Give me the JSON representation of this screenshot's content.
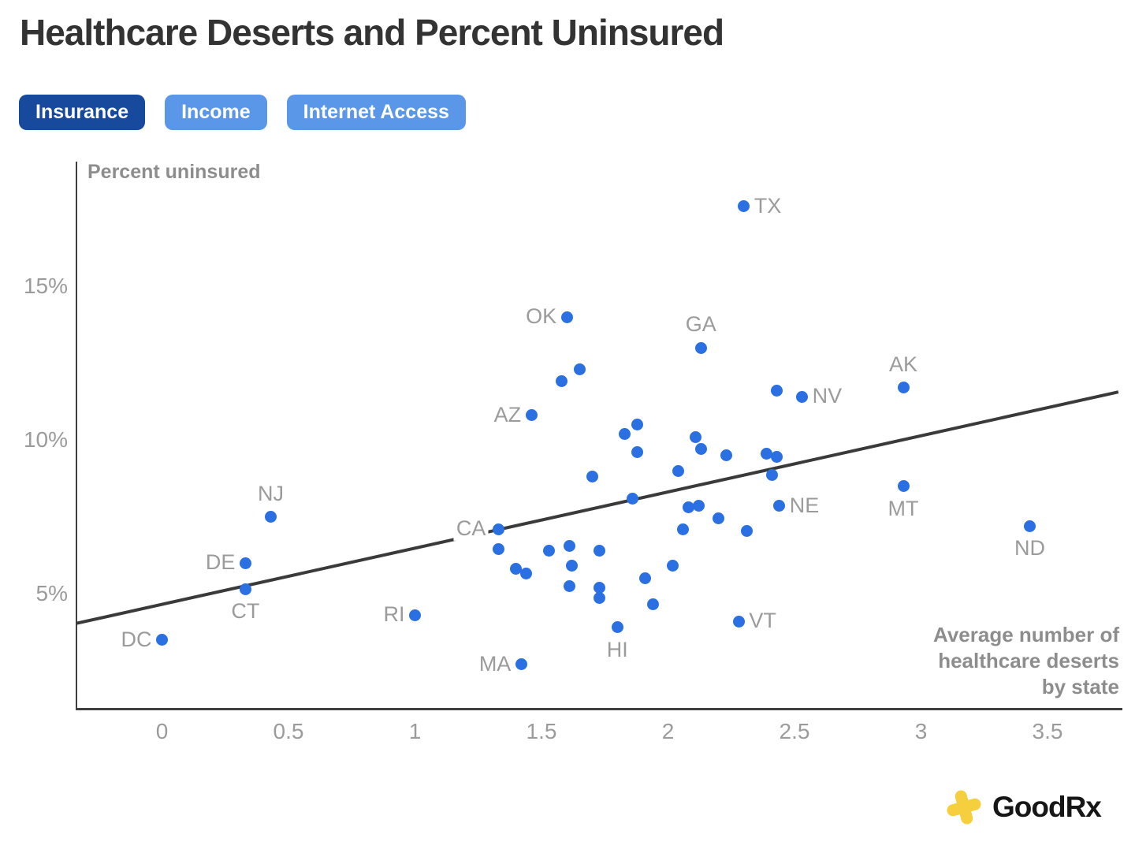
{
  "title": "Healthcare Deserts and Percent Uninsured",
  "tabs": [
    {
      "label": "Insurance",
      "active": true
    },
    {
      "label": "Income",
      "active": false
    },
    {
      "label": "Internet Access",
      "active": false
    }
  ],
  "colors": {
    "accent_blue": "#2B70E2",
    "tab_active": "#17499C",
    "tab_inactive": "#5A97E8",
    "trend_line": "#3A3A3A",
    "label_gray": "#9B9B9B",
    "brand_yellow": "#F5CF3D"
  },
  "branding": {
    "logo_text": "GoodRx",
    "logo_icon": "tilted-plus-cross"
  },
  "chart_data": {
    "type": "scatter",
    "title": "Healthcare Deserts and Percent Uninsured",
    "ylabel": "Percent uninsured",
    "xlabel_lines": [
      "Average number of",
      "healthcare deserts",
      "by state"
    ],
    "x_ticks": [
      {
        "v": 0,
        "label": "0"
      },
      {
        "v": 0.5,
        "label": "0.5"
      },
      {
        "v": 1,
        "label": "1"
      },
      {
        "v": 1.5,
        "label": "1.5"
      },
      {
        "v": 2,
        "label": "2"
      },
      {
        "v": 2.5,
        "label": "2.5"
      },
      {
        "v": 3,
        "label": "3"
      },
      {
        "v": 3.5,
        "label": "3.5"
      }
    ],
    "y_ticks": [
      {
        "v": 5,
        "label": "5%"
      },
      {
        "v": 10,
        "label": "10%"
      },
      {
        "v": 15,
        "label": "15%"
      }
    ],
    "xlim": [
      -0.35,
      3.85
    ],
    "ylim": [
      1.3,
      19.1
    ],
    "grid": false,
    "legend": false,
    "trendline": {
      "x1": -0.34,
      "y1": 4.03,
      "x2": 3.78,
      "y2": 11.56
    },
    "points": [
      {
        "state": "DC",
        "x": 0.0,
        "y": 3.5,
        "label_pos": "left"
      },
      {
        "state": "CT",
        "x": 0.33,
        "y": 5.15,
        "label_pos": "below"
      },
      {
        "state": "DE",
        "x": 0.33,
        "y": 6.0,
        "label_pos": "left"
      },
      {
        "state": "NJ",
        "x": 0.43,
        "y": 7.5,
        "label_pos": "above"
      },
      {
        "state": "RI",
        "x": 1.0,
        "y": 4.3,
        "label_pos": "left"
      },
      {
        "state": "CA",
        "x": 1.33,
        "y": 7.1,
        "label_pos": "left",
        "halo": true
      },
      {
        "state": "MA",
        "x": 1.42,
        "y": 2.7,
        "label_pos": "left"
      },
      {
        "state": "AZ",
        "x": 1.46,
        "y": 10.8,
        "label_pos": "left"
      },
      {
        "state": "OK",
        "x": 1.6,
        "y": 14.0,
        "label_pos": "left"
      },
      {
        "state": "HI",
        "x": 1.8,
        "y": 3.9,
        "label_pos": "below"
      },
      {
        "state": "GA",
        "x": 2.13,
        "y": 13.0,
        "label_pos": "above"
      },
      {
        "state": "VT",
        "x": 2.28,
        "y": 4.1,
        "label_pos": "right"
      },
      {
        "state": "TX",
        "x": 2.3,
        "y": 17.6,
        "label_pos": "right"
      },
      {
        "state": "NE",
        "x": 2.44,
        "y": 7.85,
        "label_pos": "right"
      },
      {
        "state": "NV",
        "x": 2.53,
        "y": 11.4,
        "label_pos": "right"
      },
      {
        "state": "AK",
        "x": 2.93,
        "y": 11.7,
        "label_pos": "above"
      },
      {
        "state": "MT",
        "x": 2.93,
        "y": 8.5,
        "label_pos": "below"
      },
      {
        "state": "ND",
        "x": 3.43,
        "y": 7.2,
        "label_pos": "below"
      },
      {
        "x": 1.58,
        "y": 11.9
      },
      {
        "x": 1.65,
        "y": 12.3
      },
      {
        "x": 2.43,
        "y": 11.6
      },
      {
        "x": 1.83,
        "y": 10.2
      },
      {
        "x": 1.88,
        "y": 10.5
      },
      {
        "x": 1.88,
        "y": 9.6
      },
      {
        "x": 2.11,
        "y": 10.1
      },
      {
        "x": 2.13,
        "y": 9.7
      },
      {
        "x": 2.23,
        "y": 9.5
      },
      {
        "x": 2.04,
        "y": 9.0
      },
      {
        "x": 1.7,
        "y": 8.8
      },
      {
        "x": 1.86,
        "y": 8.1
      },
      {
        "x": 2.08,
        "y": 7.8
      },
      {
        "x": 2.12,
        "y": 7.85
      },
      {
        "x": 2.2,
        "y": 7.45
      },
      {
        "x": 2.06,
        "y": 7.1
      },
      {
        "x": 2.31,
        "y": 7.05
      },
      {
        "x": 2.39,
        "y": 9.55
      },
      {
        "x": 2.43,
        "y": 9.45
      },
      {
        "x": 2.41,
        "y": 8.85
      },
      {
        "x": 1.33,
        "y": 6.45
      },
      {
        "x": 1.53,
        "y": 6.4
      },
      {
        "x": 1.61,
        "y": 6.55
      },
      {
        "x": 1.73,
        "y": 6.4
      },
      {
        "x": 1.62,
        "y": 5.9
      },
      {
        "x": 1.4,
        "y": 5.8
      },
      {
        "x": 1.44,
        "y": 5.65
      },
      {
        "x": 2.02,
        "y": 5.9
      },
      {
        "x": 1.91,
        "y": 5.5
      },
      {
        "x": 1.61,
        "y": 5.25
      },
      {
        "x": 1.73,
        "y": 5.2
      },
      {
        "x": 1.73,
        "y": 4.85
      },
      {
        "x": 1.94,
        "y": 4.65
      }
    ]
  }
}
